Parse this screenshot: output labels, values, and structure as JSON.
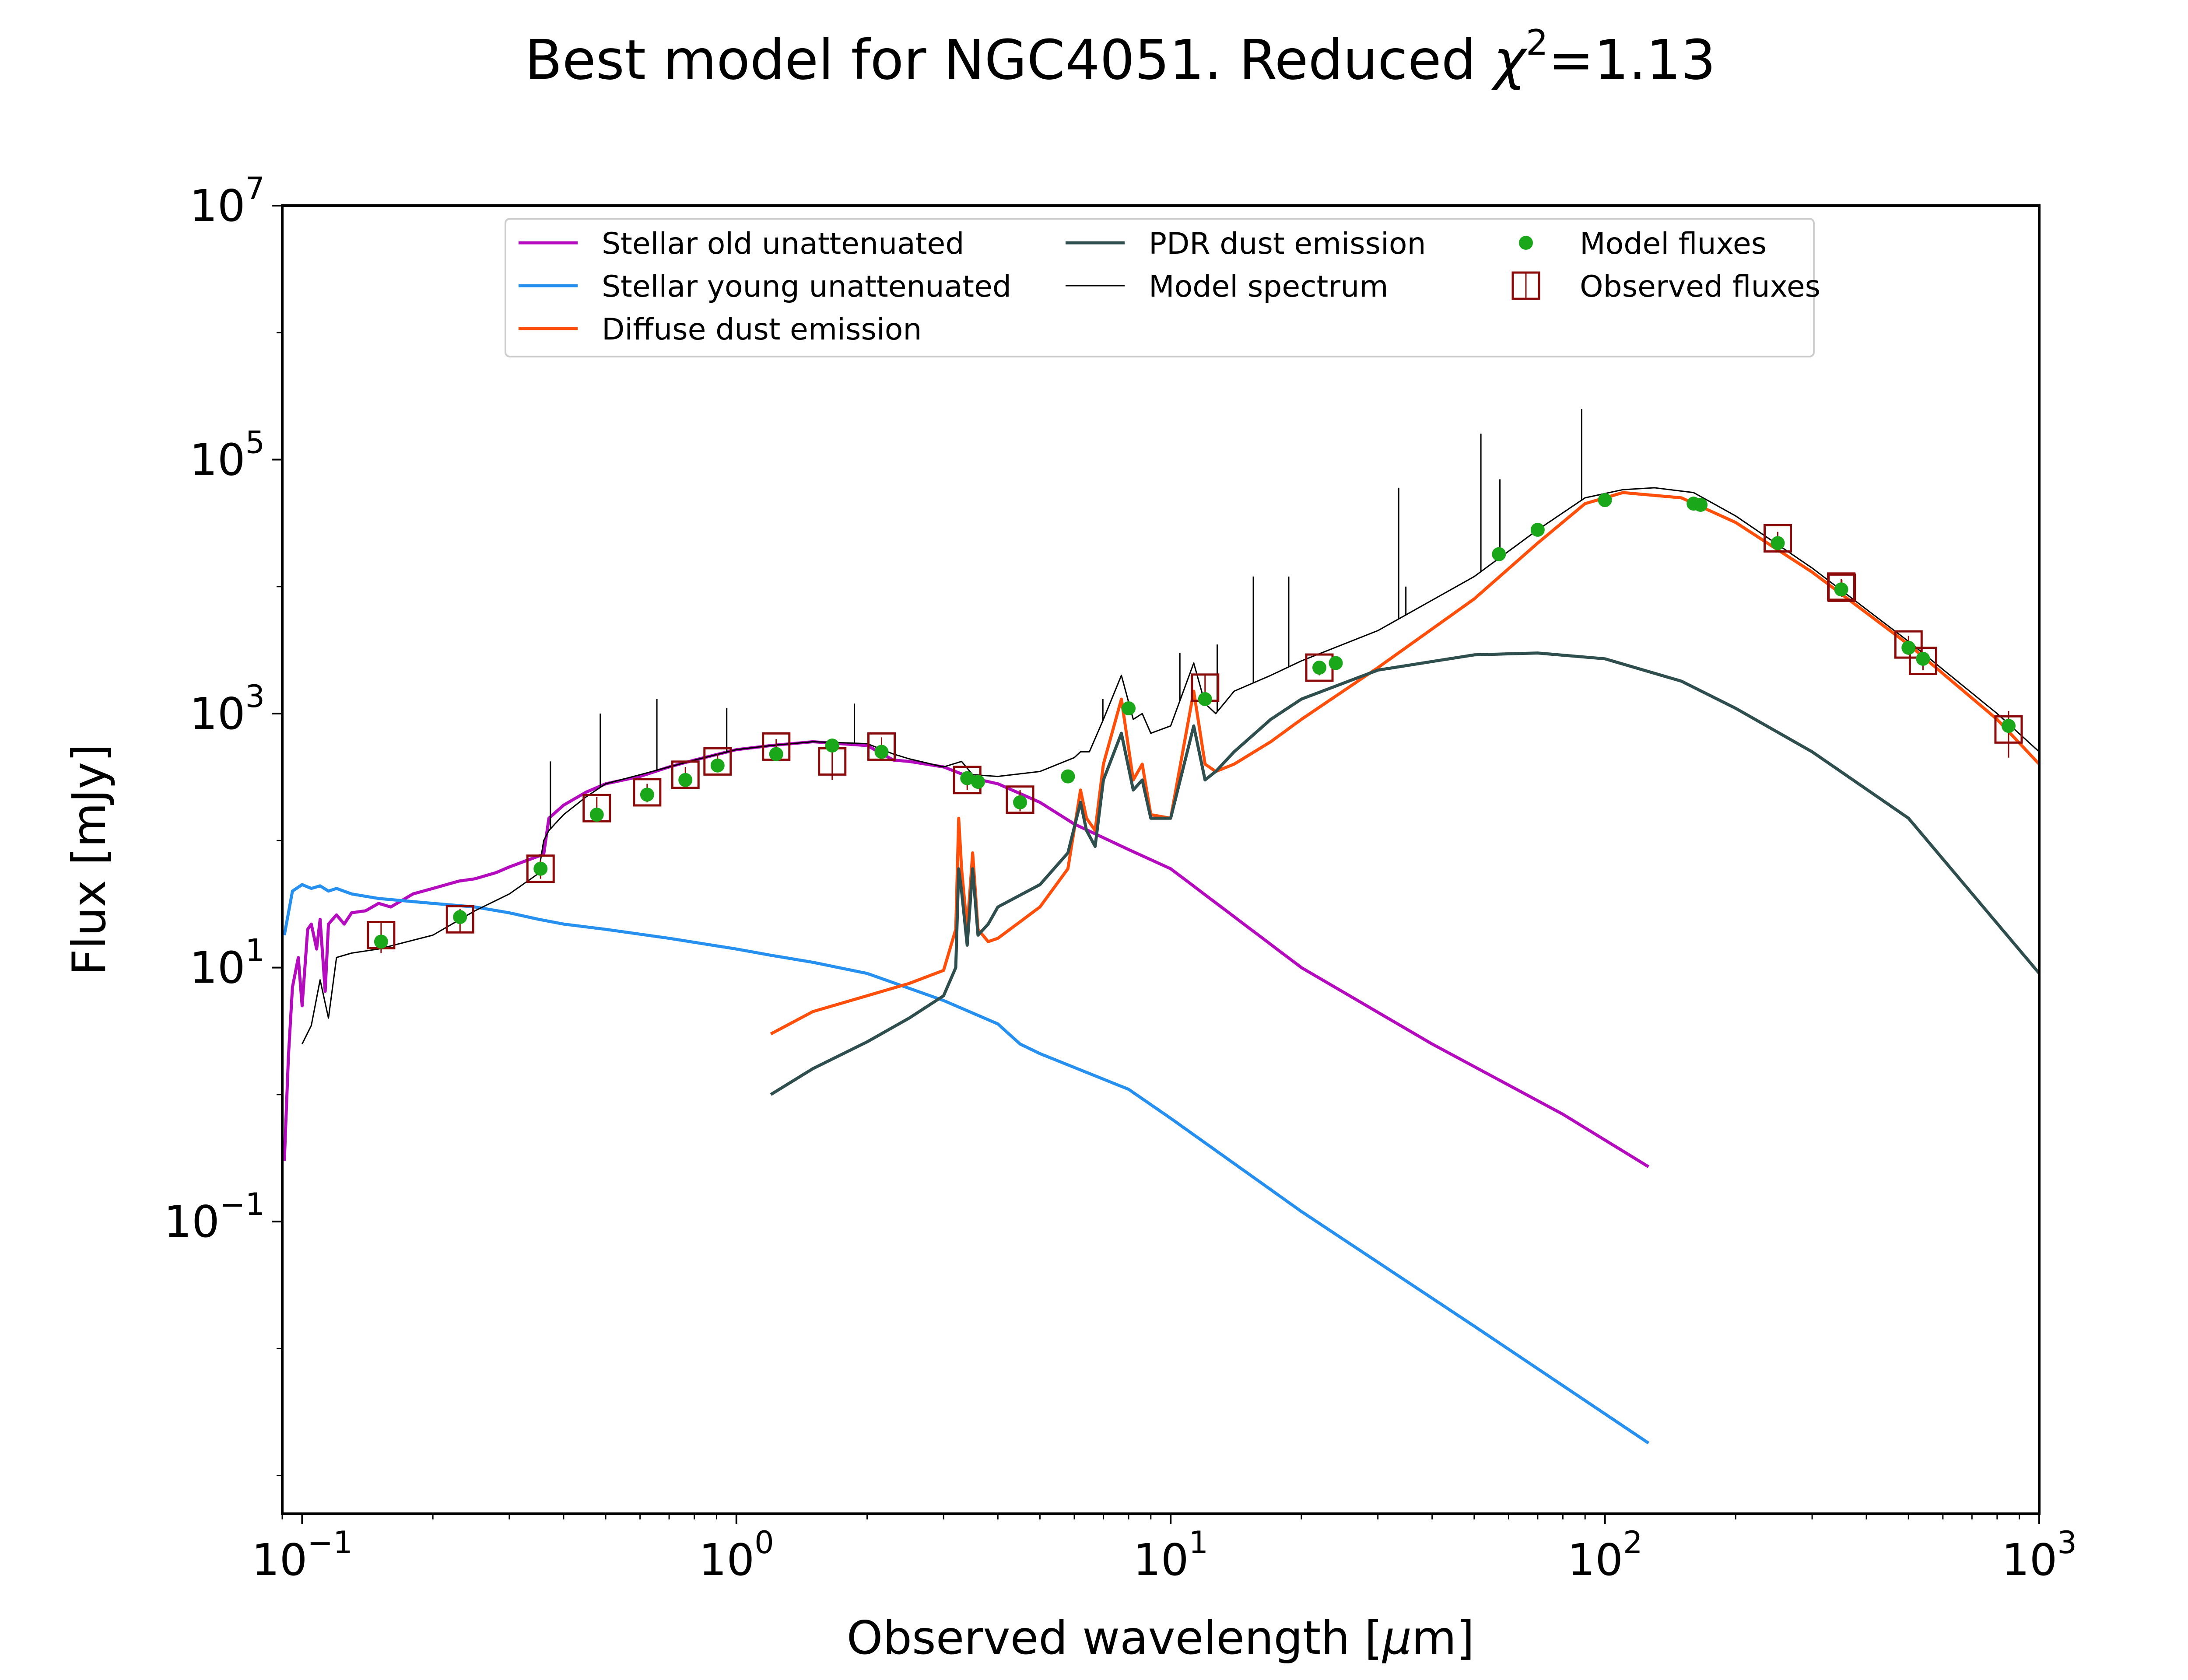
{
  "chart_data": {
    "type": "line",
    "title": "Best model for NGC4051. Reduced",
    "title_chi": "χ",
    "title_chi_exp": "2",
    "title_suffix": "=1.13",
    "xlabel_prefix": "Observed wavelength [",
    "xlabel_mu": "μ",
    "xlabel_suffix": "m]",
    "ylabel": "Flux [mJy]",
    "xscale": "log",
    "yscale": "log",
    "xlim": [
      0.09,
      1000
    ],
    "ylim": [
      0.0005,
      10000000
    ],
    "x_ticks": [
      {
        "value": 0.1,
        "base": "10",
        "exp": "−1"
      },
      {
        "value": 1,
        "base": "10",
        "exp": "0"
      },
      {
        "value": 10,
        "base": "10",
        "exp": "1"
      },
      {
        "value": 100,
        "base": "10",
        "exp": "2"
      },
      {
        "value": 1000,
        "base": "10",
        "exp": "3"
      }
    ],
    "y_ticks": [
      {
        "value": 0.1,
        "base": "10",
        "exp": "−1"
      },
      {
        "value": 10,
        "base": "10",
        "exp": "1"
      },
      {
        "value": 1000,
        "base": "10",
        "exp": "3"
      },
      {
        "value": 100000,
        "base": "10",
        "exp": "5"
      },
      {
        "value": 10000000,
        "base": "10",
        "exp": "7"
      }
    ],
    "grid": false,
    "legend_position": "top-center",
    "legend": [
      {
        "label": "Stellar old unattenuated",
        "kind": "line",
        "color": "#b30bbd",
        "width": 2
      },
      {
        "label": "Stellar young unattenuated",
        "kind": "line",
        "color": "#2690f0",
        "width": 2
      },
      {
        "label": "Diffuse dust emission",
        "kind": "line",
        "color": "#ff4f0a",
        "width": 2
      },
      {
        "label": "PDR dust emission",
        "kind": "line",
        "color": "#2f4f4f",
        "width": 2
      },
      {
        "label": "Model spectrum",
        "kind": "line",
        "color": "#000000",
        "width": 1
      },
      {
        "label": "Model fluxes",
        "kind": "dot",
        "color": "#1aa81a"
      },
      {
        "label": "Observed fluxes",
        "kind": "box",
        "color": "#8b0a0a"
      }
    ],
    "series": [
      {
        "name": "Stellar old unattenuated",
        "color": "#b30bbd",
        "x": [
          0.091,
          0.093,
          0.095,
          0.098,
          0.1,
          0.103,
          0.105,
          0.108,
          0.11,
          0.113,
          0.115,
          0.12,
          0.125,
          0.13,
          0.14,
          0.15,
          0.16,
          0.18,
          0.2,
          0.23,
          0.25,
          0.28,
          0.3,
          0.33,
          0.36,
          0.37,
          0.4,
          0.45,
          0.5,
          0.6,
          0.7,
          0.8,
          1.0,
          1.2,
          1.5,
          2.0,
          2.3,
          2.5,
          3.0,
          3.5,
          4.0,
          5.0,
          6.0,
          8.0,
          10.0,
          20.0,
          40.0,
          80.0,
          126.0
        ],
        "y": [
          0.3,
          2.0,
          7.0,
          12.0,
          5.0,
          20.0,
          22.0,
          14.0,
          24.0,
          6.5,
          22.0,
          26.0,
          22.0,
          27.0,
          28.0,
          32.0,
          30.0,
          38.0,
          42.0,
          48.0,
          50.0,
          56.0,
          62.0,
          70.0,
          78.0,
          150.0,
          190.0,
          240.0,
          280.0,
          320.0,
          380.0,
          430.0,
          520.0,
          560.0,
          600.0,
          560.0,
          430.0,
          420.0,
          380.0,
          310.0,
          280.0,
          200.0,
          135.0,
          85.0,
          60.0,
          10.0,
          2.5,
          0.7,
          0.27
        ]
      },
      {
        "name": "Stellar young unattenuated",
        "color": "#2690f0",
        "x": [
          0.091,
          0.095,
          0.1,
          0.105,
          0.11,
          0.115,
          0.12,
          0.13,
          0.15,
          0.2,
          0.25,
          0.3,
          0.35,
          0.4,
          0.5,
          0.7,
          1.0,
          1.2,
          1.5,
          2.0,
          3.0,
          4.0,
          4.5,
          5.0,
          8.0,
          10.0,
          20.0,
          50.0,
          126.0
        ],
        "y": [
          18.0,
          40.0,
          45.0,
          42.0,
          44.0,
          40.0,
          42.0,
          38.0,
          35.0,
          32.0,
          30.0,
          27.0,
          24.0,
          22.0,
          20.0,
          17.0,
          14.0,
          12.5,
          11.0,
          9.0,
          5.5,
          3.6,
          2.5,
          2.1,
          1.1,
          0.65,
          0.12,
          0.015,
          0.0018
        ]
      },
      {
        "name": "Diffuse dust emission",
        "color": "#ff4f0a",
        "x": [
          1.2,
          1.5,
          2.0,
          2.5,
          3.0,
          3.2,
          3.25,
          3.3,
          3.4,
          3.5,
          3.6,
          3.8,
          4.0,
          5.0,
          5.8,
          6.2,
          6.4,
          6.7,
          7.0,
          7.7,
          8.2,
          8.6,
          9.0,
          10.0,
          11.3,
          12.0,
          12.7,
          14.0,
          17.0,
          20.0,
          30.0,
          50.0,
          70.0,
          90.0,
          110.0,
          150.0,
          200.0,
          300.0,
          500.0,
          800.0,
          1000.0
        ],
        "y": [
          3.0,
          4.5,
          6.0,
          7.5,
          9.5,
          20.0,
          150.0,
          60.0,
          20.0,
          80.0,
          20.0,
          16.0,
          17.0,
          30.0,
          60.0,
          250.0,
          150.0,
          120.0,
          400.0,
          1300.0,
          300.0,
          400.0,
          160.0,
          150.0,
          1500.0,
          400.0,
          350.0,
          400.0,
          600.0,
          900.0,
          2300.0,
          8000.0,
          22000.0,
          45000.0,
          55000.0,
          50000.0,
          32000.0,
          13000.0,
          3500.0,
          900.0,
          400.0
        ]
      },
      {
        "name": "PDR dust emission",
        "color": "#2f4f4f",
        "x": [
          1.2,
          1.5,
          2.0,
          2.5,
          3.0,
          3.2,
          3.25,
          3.3,
          3.4,
          3.5,
          3.6,
          3.8,
          4.0,
          5.0,
          5.8,
          6.2,
          6.4,
          6.7,
          7.0,
          7.7,
          8.2,
          8.6,
          9.0,
          10.0,
          11.3,
          12.0,
          12.7,
          14.0,
          17.0,
          20.0,
          30.0,
          50.0,
          70.0,
          100.0,
          150.0,
          200.0,
          300.0,
          500.0,
          1000.0
        ],
        "y": [
          1.0,
          1.6,
          2.6,
          4.0,
          6.0,
          10.0,
          60.0,
          40.0,
          15.0,
          60.0,
          18.0,
          22.0,
          30.0,
          45.0,
          80.0,
          200.0,
          120.0,
          90.0,
          300.0,
          700.0,
          250.0,
          300.0,
          150.0,
          150.0,
          800.0,
          300.0,
          350.0,
          500.0,
          900.0,
          1300.0,
          2200.0,
          2900.0,
          3000.0,
          2700.0,
          1800.0,
          1100.0,
          500.0,
          150.0,
          9.0
        ]
      },
      {
        "name": "Model spectrum",
        "color": "#000000",
        "x": [
          0.1,
          0.105,
          0.11,
          0.115,
          0.12,
          0.13,
          0.15,
          0.2,
          0.25,
          0.3,
          0.35,
          0.36,
          0.37,
          0.4,
          0.45,
          0.5,
          0.6,
          0.7,
          0.8,
          1.0,
          1.2,
          1.5,
          2.0,
          2.3,
          2.5,
          3.0,
          3.3,
          3.5,
          4.0,
          5.0,
          6.0,
          6.2,
          6.5,
          7.0,
          7.7,
          8.2,
          8.6,
          9.0,
          10.0,
          11.3,
          12.0,
          12.7,
          14.0,
          17.0,
          20.0,
          30.0,
          50.0,
          70.0,
          90.0,
          110.0,
          130.0,
          160.0,
          200.0,
          300.0,
          500.0,
          800.0,
          1000.0
        ],
        "y": [
          2.5,
          3.5,
          8.0,
          4.0,
          12.0,
          13.0,
          14.0,
          18.0,
          28.0,
          38.0,
          55.0,
          100.0,
          120.0,
          160.0,
          220.0,
          280.0,
          330.0,
          380.0,
          430.0,
          520.0,
          560.0,
          600.0,
          580.0,
          480.0,
          440.0,
          380.0,
          420.0,
          330.0,
          320.0,
          350.0,
          450.0,
          500.0,
          500.0,
          900.0,
          2000.0,
          900.0,
          1000.0,
          700.0,
          800.0,
          2500.0,
          1200.0,
          1000.0,
          1500.0,
          2000.0,
          2600.0,
          4500.0,
          12000.0,
          28000.0,
          50000.0,
          58000.0,
          60000.0,
          55000.0,
          36000.0,
          14000.0,
          3700.0,
          1000.0,
          500.0
        ]
      }
    ],
    "emission_lines": [
      {
        "x": 0.373,
        "y": 420
      },
      {
        "x": 0.486,
        "y": 1000
      },
      {
        "x": 0.656,
        "y": 1300
      },
      {
        "x": 0.95,
        "y": 1100
      },
      {
        "x": 1.87,
        "y": 1200
      },
      {
        "x": 6.98,
        "y": 1300
      },
      {
        "x": 10.5,
        "y": 3000
      },
      {
        "x": 12.8,
        "y": 3500
      },
      {
        "x": 15.5,
        "y": 12000
      },
      {
        "x": 18.7,
        "y": 12000
      },
      {
        "x": 33.5,
        "y": 60000
      },
      {
        "x": 34.8,
        "y": 10000
      },
      {
        "x": 51.8,
        "y": 160000
      },
      {
        "x": 57.3,
        "y": 70000
      },
      {
        "x": 88.4,
        "y": 250000
      }
    ],
    "model_fluxes": [
      {
        "x": 0.152,
        "y": 16
      },
      {
        "x": 0.231,
        "y": 25
      },
      {
        "x": 0.354,
        "y": 60
      },
      {
        "x": 0.477,
        "y": 160
      },
      {
        "x": 0.623,
        "y": 230
      },
      {
        "x": 0.763,
        "y": 300
      },
      {
        "x": 0.905,
        "y": 390
      },
      {
        "x": 1.235,
        "y": 480
      },
      {
        "x": 1.662,
        "y": 560
      },
      {
        "x": 2.159,
        "y": 500
      },
      {
        "x": 3.4,
        "y": 310
      },
      {
        "x": 3.6,
        "y": 290
      },
      {
        "x": 4.5,
        "y": 200
      },
      {
        "x": 5.8,
        "y": 320
      },
      {
        "x": 8.0,
        "y": 1100
      },
      {
        "x": 12.0,
        "y": 1300
      },
      {
        "x": 22.0,
        "y": 2300
      },
      {
        "x": 24.0,
        "y": 2500
      },
      {
        "x": 57.0,
        "y": 18000
      },
      {
        "x": 70.0,
        "y": 28000
      },
      {
        "x": 100.0,
        "y": 48000
      },
      {
        "x": 160.0,
        "y": 45000
      },
      {
        "x": 166.0,
        "y": 44000
      },
      {
        "x": 250.0,
        "y": 22000
      },
      {
        "x": 350.0,
        "y": 9500
      },
      {
        "x": 500.0,
        "y": 3300
      },
      {
        "x": 540.0,
        "y": 2700
      },
      {
        "x": 850.0,
        "y": 800
      }
    ],
    "observed_fluxes": [
      {
        "x": 0.152,
        "y": 18,
        "err": 5
      },
      {
        "x": 0.231,
        "y": 24,
        "err": 5
      },
      {
        "x": 0.354,
        "y": 60,
        "err": 10
      },
      {
        "x": 0.477,
        "y": 180,
        "err": 40
      },
      {
        "x": 0.623,
        "y": 240,
        "err": 40
      },
      {
        "x": 0.763,
        "y": 330,
        "err": 50
      },
      {
        "x": 0.905,
        "y": 420,
        "err": 60
      },
      {
        "x": 1.235,
        "y": 550,
        "err": 80
      },
      {
        "x": 1.662,
        "y": 420,
        "err": 120
      },
      {
        "x": 2.159,
        "y": 550,
        "err": 100
      },
      {
        "x": 3.4,
        "y": 300,
        "err": 50
      },
      {
        "x": 4.5,
        "y": 210,
        "err": 40
      },
      {
        "x": 12.0,
        "y": 1600,
        "err": 400
      },
      {
        "x": 22.0,
        "y": 2300,
        "err": 300
      },
      {
        "x": 250.0,
        "y": 24000,
        "err": 3000
      },
      {
        "x": 350.0,
        "y": 10000,
        "err": 1500
      },
      {
        "x": 351.0,
        "y": 9800,
        "err": 1500
      },
      {
        "x": 500.0,
        "y": 3500,
        "err": 600
      },
      {
        "x": 540.0,
        "y": 2600,
        "err": 400
      },
      {
        "x": 850.0,
        "y": 750,
        "err": 300
      }
    ]
  }
}
